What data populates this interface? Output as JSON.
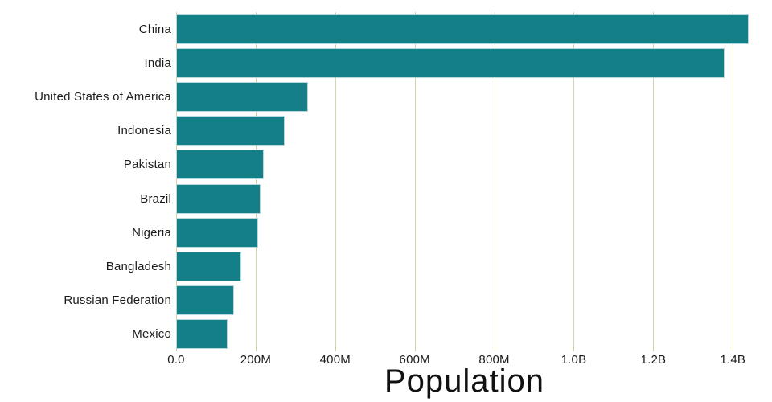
{
  "chart_data": {
    "type": "bar",
    "orientation": "horizontal",
    "title": "",
    "xlabel": "Population",
    "ylabel": "",
    "categories": [
      "China",
      "India",
      "United States of America",
      "Indonesia",
      "Pakistan",
      "Brazil",
      "Nigeria",
      "Bangladesh",
      "Russian Federation",
      "Mexico"
    ],
    "values_millions": [
      1439.3,
      1380.0,
      331.0,
      273.5,
      220.9,
      212.6,
      206.1,
      164.7,
      145.9,
      128.9
    ],
    "xlim_millions": [
      0,
      1450
    ],
    "gridline_values_millions": [
      0,
      200,
      400,
      600,
      800,
      1000,
      1200,
      1400
    ],
    "x_ticks": [
      {
        "label": "0.0",
        "value_millions": 0
      },
      {
        "label": "200M",
        "value_millions": 200
      },
      {
        "label": "400M",
        "value_millions": 400
      },
      {
        "label": "600M",
        "value_millions": 600
      },
      {
        "label": "800M",
        "value_millions": 800
      },
      {
        "label": "1.0B",
        "value_millions": 1000
      },
      {
        "label": "1.2B",
        "value_millions": 1200
      },
      {
        "label": "1.4B",
        "value_millions": 1400
      }
    ],
    "grid": "vertical-only",
    "legend": "none",
    "colors": {
      "bar_fill": "#157f88",
      "bar_edge": "#b9d8dd",
      "gridline": "#d5d3a3",
      "text": "#1b1b1b",
      "background": "#ffffff"
    }
  }
}
